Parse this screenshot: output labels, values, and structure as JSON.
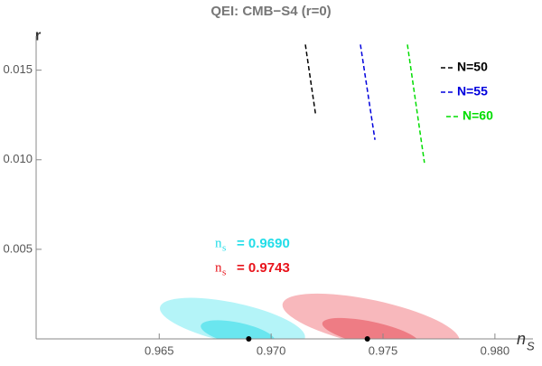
{
  "chart_data": {
    "type": "line",
    "title": "QEI: CMB−S4 (r=0)",
    "x_label": "n",
    "x_label_sub": "S",
    "y_label": "r",
    "xlim": [
      0.9595,
      0.9817
    ],
    "ylim": [
      0,
      0.0169
    ],
    "xticks": [
      0.965,
      {
        "value": 0.97,
        "label": "0.970"
      },
      0.975,
      {
        "value": 0.98,
        "label": "0.980"
      }
    ],
    "yticks": [
      0.005,
      {
        "value": 0.01,
        "label": "0.010"
      },
      0.015
    ],
    "series": [
      {
        "name": "N=50",
        "color": "#000000",
        "x": [
          0.97153,
          0.97198
        ],
        "values": [
          0.01643,
          0.01259
        ]
      },
      {
        "name": "N=55",
        "color": "#0000dd",
        "x": [
          0.97399,
          0.97464
        ],
        "values": [
          0.01643,
          0.01111
        ]
      },
      {
        "name": "N=60",
        "color": "#00dd00",
        "x": [
          0.97609,
          0.97685
        ],
        "values": [
          0.01643,
          0.00983
        ]
      }
    ],
    "points": {
      "label": "n",
      "label_sub": "s",
      "x": [
        0.969,
        0.9743
      ],
      "values": [
        0,
        0
      ],
      "value_labels": [
        "= 0.9690",
        "= 0.9743"
      ],
      "colors": [
        "#22dde8",
        "#e8141c"
      ],
      "region_colors": [
        [
          "#b4f4f8",
          "#6ae6ef"
        ],
        [
          "#f8b8bc",
          "#ee7c84"
        ]
      ]
    }
  }
}
